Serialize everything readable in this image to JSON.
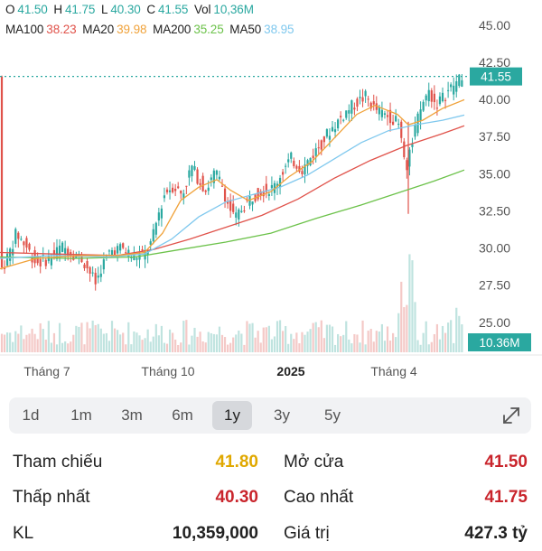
{
  "legend": {
    "ohlc": [
      {
        "key": "O",
        "value": "41.50"
      },
      {
        "key": "H",
        "value": "41.75"
      },
      {
        "key": "L",
        "value": "40.30"
      },
      {
        "key": "C",
        "value": "41.55"
      },
      {
        "key": "Vol",
        "value": "10,36M"
      }
    ],
    "ma": [
      {
        "key": "MA100",
        "value": "38.23",
        "color": "#e0524a"
      },
      {
        "key": "MA20",
        "value": "39.98",
        "color": "#f0a23a"
      },
      {
        "key": "MA200",
        "value": "35.25",
        "color": "#6cc24a"
      },
      {
        "key": "MA50",
        "value": "38.95",
        "color": "#7fc8ee"
      }
    ],
    "value_color": "#2aa8a0"
  },
  "chart_data": {
    "type": "candlestick",
    "y_ticks": [
      "45.00",
      "42.50",
      "40.00",
      "37.50",
      "35.00",
      "32.50",
      "30.00",
      "27.50",
      "25.00"
    ],
    "y_tick_values": [
      45,
      42.5,
      40,
      37.5,
      35,
      32.5,
      30,
      27.5,
      25
    ],
    "ylim": [
      24.2,
      45.6
    ],
    "x_labels": [
      "Tháng 7",
      "Tháng 10",
      "2025",
      "Tháng 4"
    ],
    "x_label_bold": [
      false,
      false,
      true,
      false
    ],
    "last_price": "41.55",
    "last_price_value": 41.55,
    "last_volume": "10.36M",
    "colors": {
      "up": "#2aa8a0",
      "down": "#e0524a",
      "volume": "#f4c9c7",
      "volume_up": "#bfe3df"
    },
    "close_path": [
      [
        0,
        28.4
      ],
      [
        10,
        29.6
      ],
      [
        18,
        31.0
      ],
      [
        28,
        30.2
      ],
      [
        40,
        29.0
      ],
      [
        55,
        29.3
      ],
      [
        68,
        30.1
      ],
      [
        80,
        29.7
      ],
      [
        92,
        29.2
      ],
      [
        100,
        28.3
      ],
      [
        106,
        27.6
      ],
      [
        112,
        28.7
      ],
      [
        122,
        29.8
      ],
      [
        135,
        30.0
      ],
      [
        148,
        29.4
      ],
      [
        160,
        29.6
      ],
      [
        168,
        30.4
      ],
      [
        175,
        32.2
      ],
      [
        183,
        33.8
      ],
      [
        192,
        34.2
      ],
      [
        202,
        33.6
      ],
      [
        212,
        35.5
      ],
      [
        220,
        34.6
      ],
      [
        228,
        33.9
      ],
      [
        238,
        35.1
      ],
      [
        246,
        34.2
      ],
      [
        252,
        33.0
      ],
      [
        260,
        31.9
      ],
      [
        268,
        32.7
      ],
      [
        278,
        33.4
      ],
      [
        290,
        33.9
      ],
      [
        302,
        34.0
      ],
      [
        312,
        35.1
      ],
      [
        322,
        36.0
      ],
      [
        335,
        35.3
      ],
      [
        345,
        36.2
      ],
      [
        355,
        37.0
      ],
      [
        365,
        37.9
      ],
      [
        375,
        38.6
      ],
      [
        385,
        39.3
      ],
      [
        395,
        39.8
      ],
      [
        405,
        40.2
      ],
      [
        414,
        39.4
      ],
      [
        424,
        39.0
      ],
      [
        434,
        38.8
      ],
      [
        442,
        38.2
      ],
      [
        450,
        35.4
      ],
      [
        458,
        37.8
      ],
      [
        466,
        39.4
      ],
      [
        474,
        40.6
      ],
      [
        482,
        39.7
      ],
      [
        490,
        40.1
      ],
      [
        498,
        40.7
      ],
      [
        506,
        41.2
      ],
      [
        514,
        41.55
      ]
    ],
    "ma20": [
      [
        0,
        28.6
      ],
      [
        40,
        29.3
      ],
      [
        90,
        29.5
      ],
      [
        130,
        29.5
      ],
      [
        160,
        29.7
      ],
      [
        180,
        31.0
      ],
      [
        200,
        33.2
      ],
      [
        220,
        34.1
      ],
      [
        240,
        34.6
      ],
      [
        255,
        33.9
      ],
      [
        275,
        33.2
      ],
      [
        300,
        33.8
      ],
      [
        320,
        34.8
      ],
      [
        345,
        35.8
      ],
      [
        370,
        37.4
      ],
      [
        395,
        39.0
      ],
      [
        415,
        39.6
      ],
      [
        440,
        39.0
      ],
      [
        452,
        38.3
      ],
      [
        468,
        38.6
      ],
      [
        490,
        39.4
      ],
      [
        514,
        39.98
      ]
    ],
    "ma50": [
      [
        0,
        29.3
      ],
      [
        60,
        29.5
      ],
      [
        120,
        29.4
      ],
      [
        160,
        29.6
      ],
      [
        190,
        30.6
      ],
      [
        220,
        32.1
      ],
      [
        250,
        33.1
      ],
      [
        280,
        33.6
      ],
      [
        310,
        34.1
      ],
      [
        340,
        34.9
      ],
      [
        370,
        36.0
      ],
      [
        400,
        37.1
      ],
      [
        430,
        37.9
      ],
      [
        460,
        38.3
      ],
      [
        490,
        38.6
      ],
      [
        514,
        38.95
      ]
    ],
    "ma100": [
      [
        0,
        29.7
      ],
      [
        60,
        29.6
      ],
      [
        130,
        29.5
      ],
      [
        170,
        29.9
      ],
      [
        210,
        30.6
      ],
      [
        250,
        31.4
      ],
      [
        290,
        32.2
      ],
      [
        330,
        33.3
      ],
      [
        370,
        34.7
      ],
      [
        410,
        35.9
      ],
      [
        450,
        36.9
      ],
      [
        490,
        37.7
      ],
      [
        514,
        38.23
      ]
    ],
    "ma200": [
      [
        0,
        29.4
      ],
      [
        80,
        29.3
      ],
      [
        150,
        29.4
      ],
      [
        200,
        29.9
      ],
      [
        250,
        30.4
      ],
      [
        300,
        31.0
      ],
      [
        350,
        32.0
      ],
      [
        400,
        32.9
      ],
      [
        440,
        33.7
      ],
      [
        480,
        34.5
      ],
      [
        514,
        35.25
      ]
    ]
  },
  "timeframes": {
    "items": [
      {
        "label": "1d"
      },
      {
        "label": "1m"
      },
      {
        "label": "3m"
      },
      {
        "label": "6m"
      },
      {
        "label": "1y"
      },
      {
        "label": "3y"
      },
      {
        "label": "5y"
      }
    ],
    "active": "1y"
  },
  "stats": [
    {
      "label": "Tham chiếu",
      "value": "41.80",
      "color": "#e0a800"
    },
    {
      "label": "Mở cửa",
      "value": "41.50",
      "color": "#c9252c"
    },
    {
      "label": "Thấp nhất",
      "value": "40.30",
      "color": "#c9252c"
    },
    {
      "label": "Cao nhất",
      "value": "41.75",
      "color": "#c9252c"
    },
    {
      "label": "KL",
      "value": "10,359,000",
      "color": "#222222"
    },
    {
      "label": "Giá trị",
      "value": "427.3 tỷ",
      "color": "#222222"
    }
  ]
}
